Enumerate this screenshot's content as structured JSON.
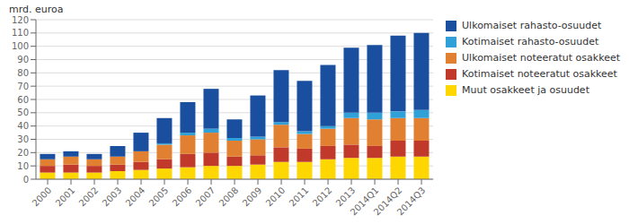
{
  "chart_data": {
    "type": "bar",
    "stacked": true,
    "ylabel": "mrd. euroa",
    "categories": [
      "2000",
      "2001",
      "2002",
      "2003",
      "2004",
      "2005",
      "2006",
      "2007",
      "2008",
      "2009",
      "2010",
      "2011",
      "2012",
      "2013",
      "2014Q1",
      "2014Q2",
      "2014Q3"
    ],
    "series": [
      {
        "name": "Muut osakkeet ja osuudet",
        "color": "#FFD700",
        "values": [
          5,
          5,
          5,
          6,
          7,
          8,
          9,
          10,
          10,
          11,
          13,
          13,
          15,
          16,
          16,
          17,
          17
        ]
      },
      {
        "name": "Kotimaiset noteeratut osakkeet",
        "color": "#C0392B",
        "values": [
          5,
          6,
          5,
          5,
          6,
          7,
          10,
          10,
          7,
          7,
          11,
          10,
          10,
          10,
          9,
          12,
          12
        ]
      },
      {
        "name": "Ulkomaiset noteeratut osakkeet",
        "color": "#E08030",
        "values": [
          5,
          6,
          5,
          6,
          8,
          11,
          14,
          15,
          12,
          12,
          17,
          11,
          13,
          20,
          20,
          17,
          17
        ]
      },
      {
        "name": "Kotimaiset rahasto-osuudet",
        "color": "#30A0D8",
        "values": [
          0,
          0,
          0,
          0,
          0,
          1,
          2,
          3,
          2,
          2,
          2,
          2,
          2,
          4,
          5,
          5,
          6
        ]
      },
      {
        "name": "Ulkomaiset rahasto-osuudet",
        "color": "#1A4FA0",
        "values": [
          4,
          4,
          4,
          8,
          14,
          19,
          23,
          30,
          14,
          31,
          39,
          38,
          46,
          49,
          51,
          57,
          58
        ]
      }
    ],
    "ylim": [
      0,
      120
    ],
    "yticks": [
      0,
      10,
      20,
      30,
      40,
      50,
      60,
      70,
      80,
      90,
      100,
      110,
      120
    ],
    "grid": true,
    "legend": "right"
  }
}
